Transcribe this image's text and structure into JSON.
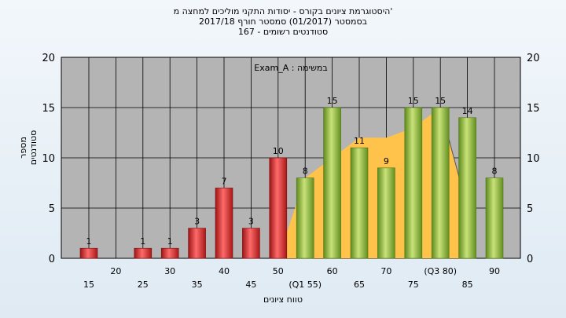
{
  "title": {
    "line1": "'היסטוגרמת ציונים בקורס - יסודות התקני מוליכים למחצה מ",
    "line2": "בסמסטר  (01/2017)  סמסטר חורף  2017/18",
    "line3": "סטודנטים רשומים - 167"
  },
  "chart_data": {
    "type": "bar",
    "title": "'היסטוגרמת ציונים בקורס - יסודות התקני מוליכים למחצה מ",
    "subtitle": "בסמסטר  (01/2017)  סמסטר חורף  2017/18 — סטודנטים רשומים - 167",
    "xlabel": "טווח ציונים",
    "ylabel": "מספר סטודנטים",
    "ylim": [
      0,
      20
    ],
    "yticks": [
      0,
      5,
      10,
      15,
      20
    ],
    "grid": true,
    "annotation": "במשימה : Exam_A",
    "categories": [
      "15",
      "20",
      "25",
      "30",
      "35",
      "40",
      "45",
      "50",
      "55",
      "60",
      "65",
      "70",
      "75",
      "80",
      "85",
      "90"
    ],
    "tick_labels": [
      "15",
      "20",
      "25",
      "30",
      "35",
      "40",
      "45",
      "50",
      "(Q1 55)",
      "60",
      "65",
      "70",
      "75",
      "(Q3 80)",
      "85",
      "90"
    ],
    "values": [
      1,
      0,
      1,
      1,
      3,
      7,
      3,
      10,
      8,
      15,
      11,
      9,
      15,
      15,
      14,
      8
    ],
    "bar_colors": [
      "#dd2b2b",
      "#dd2b2b",
      "#dd2b2b",
      "#dd2b2b",
      "#dd2b2b",
      "#dd2b2b",
      "#dd2b2b",
      "#dd2b2b",
      "#8fba3a",
      "#8fba3a",
      "#8fba3a",
      "#8fba3a",
      "#8fba3a",
      "#8fba3a",
      "#8fba3a",
      "#8fba3a"
    ],
    "area": {
      "color": "#ffc24a",
      "x": [
        "50",
        "55",
        "60",
        "65",
        "70",
        "75",
        "80",
        "85"
      ],
      "values": [
        0,
        8,
        10,
        12,
        12,
        13,
        15,
        5
      ]
    },
    "colors": {
      "plot_bg": "#b4b4b4",
      "grid": "#000000",
      "fail": "#dd2b2b",
      "pass": "#8fba3a"
    }
  }
}
